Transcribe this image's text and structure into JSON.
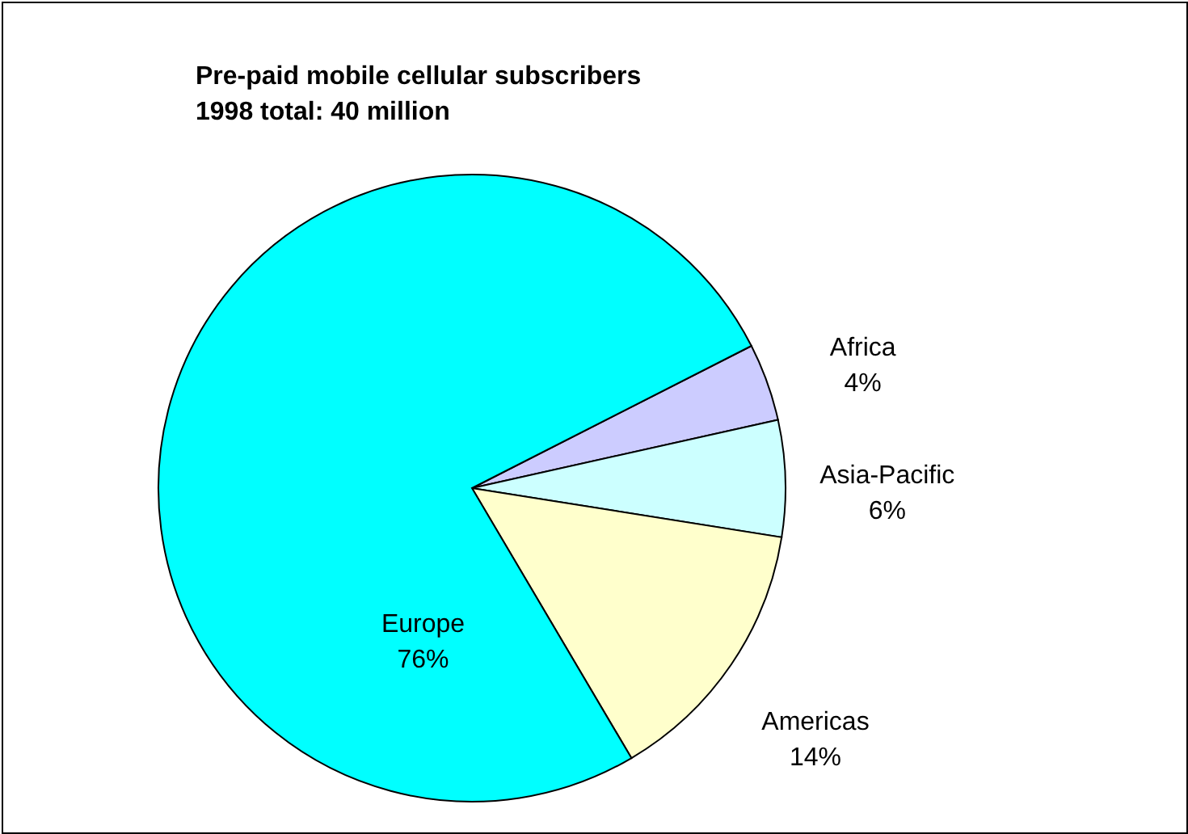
{
  "chart_data": {
    "type": "pie",
    "title": "Pre-paid mobile cellular subscribers",
    "subtitle": "1998 total: 40 million",
    "categories": [
      "Africa",
      "Asia-Pacific",
      "Americas",
      "Europe"
    ],
    "values": [
      4,
      6,
      14,
      76
    ],
    "value_labels": [
      "4%",
      "6%",
      "14%",
      "76%"
    ],
    "colors": [
      "#ccccff",
      "#ccffff",
      "#ffffcc",
      "#00ffff"
    ]
  }
}
